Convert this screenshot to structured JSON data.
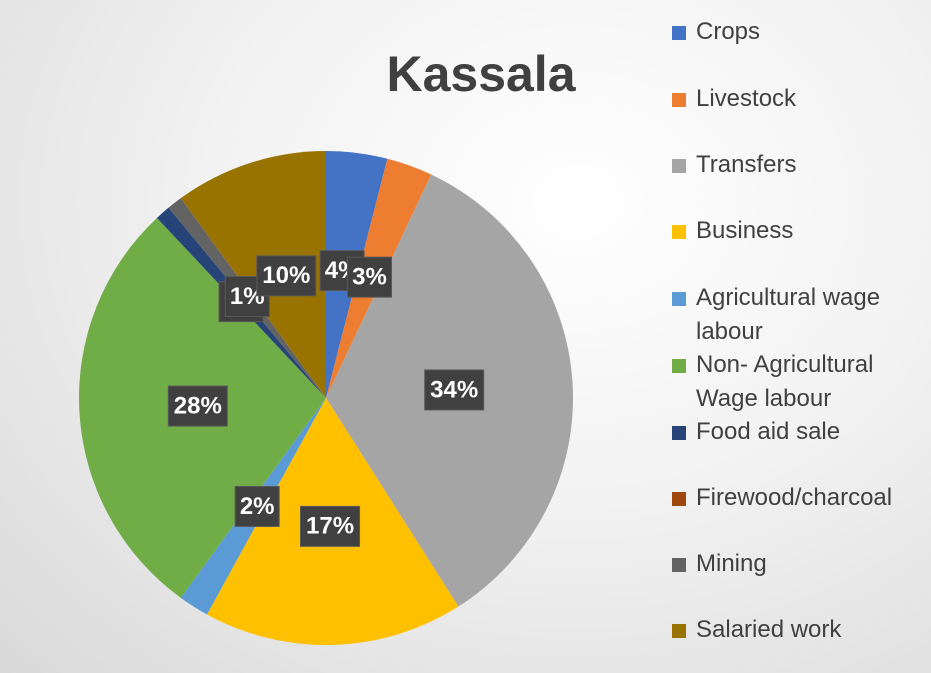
{
  "chart_data": {
    "type": "pie",
    "title": "Kassala",
    "categories": [
      "Crops",
      "Livestock",
      "Transfers",
      "Business",
      "Agricultural wage labour",
      "Non- Agricultural Wage labour",
      "Food aid sale",
      "Firewood/charcoal",
      "Mining",
      "Salaried work"
    ],
    "values": [
      4,
      3,
      34,
      17,
      2,
      28,
      1,
      0,
      1,
      10
    ],
    "value_labels": [
      "4%",
      "3%",
      "34%",
      "17%",
      "2%",
      "28%",
      "1%",
      null,
      "1%",
      "10%"
    ],
    "colors": [
      "#4472c4",
      "#ed7d31",
      "#a5a5a5",
      "#ffc000",
      "#5b9bd5",
      "#70ad47",
      "#264478",
      "#9e480e",
      "#636363",
      "#997300"
    ],
    "legend": "right"
  }
}
